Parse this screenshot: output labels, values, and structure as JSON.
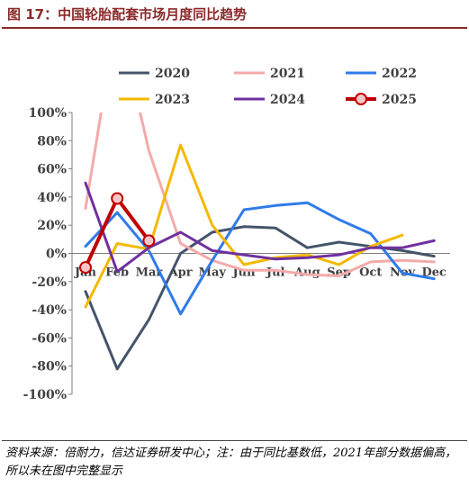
{
  "figure": {
    "title": "图 17：中国轮胎配套市场月度同比趋势",
    "source": "资料来源：倍耐力，信达证券研发中心；注：由于同比基数低，2021年部分数据偏高，所以未在图中完整显示"
  },
  "chart_data": {
    "type": "line",
    "categories": [
      "Jan",
      "Feb",
      "Mar",
      "Apr",
      "May",
      "Jun",
      "Jul",
      "Aug",
      "Sep",
      "Oct",
      "Nov",
      "Dec"
    ],
    "ylim": [
      -100,
      100
    ],
    "yticks": [
      "100%",
      "80%",
      "60%",
      "40%",
      "20%",
      "0%",
      "-20%",
      "-40%",
      "-60%",
      "-80%",
      "-100%"
    ],
    "legend_position": "top",
    "grid": false,
    "series": [
      {
        "name": "2020",
        "color": "#44546a",
        "values": [
          -27,
          -82,
          -47,
          0,
          15,
          19,
          18,
          4,
          8,
          5,
          2,
          -2
        ]
      },
      {
        "name": "2021",
        "color": "#f4aaaa",
        "values": [
          32,
          170,
          73,
          7,
          -5,
          -12,
          -12,
          -15,
          -16,
          -6,
          -5,
          -6
        ],
        "note_clipped": true
      },
      {
        "name": "2022",
        "color": "#2f7bea",
        "values": [
          5,
          29,
          2,
          -43,
          -5,
          31,
          34,
          36,
          24,
          14,
          -14,
          -18
        ]
      },
      {
        "name": "2023",
        "color": "#f5b800",
        "values": [
          -38,
          7,
          3,
          77,
          20,
          -8,
          -3,
          -1,
          -8,
          5,
          13,
          null
        ]
      },
      {
        "name": "2024",
        "color": "#7030a0",
        "values": [
          50,
          -13,
          4,
          15,
          2,
          -1,
          -4,
          -3,
          -1,
          4,
          4,
          9
        ]
      },
      {
        "name": "2025",
        "color": "#c00000",
        "values": [
          -10,
          39,
          9,
          null,
          null,
          null,
          null,
          null,
          null,
          null,
          null,
          null
        ],
        "markers": true
      }
    ]
  }
}
